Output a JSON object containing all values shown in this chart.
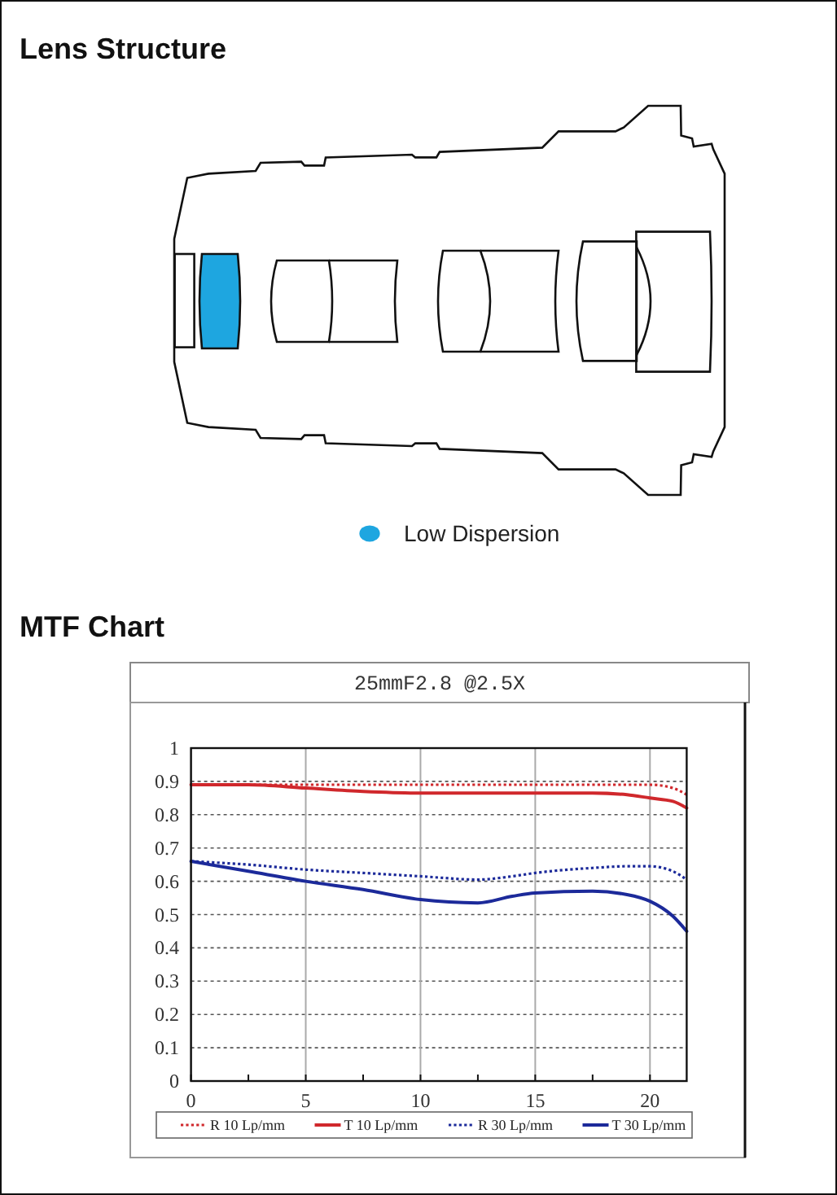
{
  "chart_data": [
    {
      "type": "other",
      "title": "Lens Structure",
      "annotations": [
        "Low Dispersion"
      ]
    },
    {
      "type": "line",
      "title": "MTF Chart",
      "subtitle": "25mmF2.8 @2.5X",
      "x": [
        0,
        2.5,
        5,
        7.5,
        10,
        12.5,
        14,
        15,
        17.5,
        19,
        20,
        21,
        21.6
      ],
      "series": [
        {
          "name": "R 10 Lp/mm",
          "color": "#d0282c",
          "line_style": "dotted",
          "values": [
            0.89,
            0.89,
            0.89,
            0.89,
            0.89,
            0.89,
            0.89,
            0.89,
            0.89,
            0.89,
            0.89,
            0.88,
            0.86
          ]
        },
        {
          "name": "T 10 Lp/mm",
          "color": "#d0282c",
          "line_style": "solid",
          "values": [
            0.89,
            0.89,
            0.88,
            0.87,
            0.865,
            0.865,
            0.865,
            0.865,
            0.865,
            0.86,
            0.85,
            0.84,
            0.82
          ]
        },
        {
          "name": "R 30 Lp/mm",
          "color": "#1c2a9a",
          "line_style": "dotted",
          "values": [
            0.66,
            0.65,
            0.635,
            0.625,
            0.615,
            0.605,
            0.615,
            0.625,
            0.64,
            0.645,
            0.645,
            0.63,
            0.605
          ]
        },
        {
          "name": "T 30 Lp/mm",
          "color": "#1c2a9a",
          "line_style": "solid",
          "values": [
            0.66,
            0.63,
            0.6,
            0.575,
            0.545,
            0.535,
            0.555,
            0.565,
            0.57,
            0.56,
            0.54,
            0.495,
            0.45
          ]
        }
      ],
      "xlim": [
        0,
        21.6
      ],
      "xticks": [
        0,
        {
          "value": 2.5,
          "label": null
        },
        5,
        {
          "value": 7.5,
          "label": null
        },
        10,
        {
          "value": 12.5,
          "label": null
        },
        15,
        {
          "value": 17.5,
          "label": null
        },
        20
      ],
      "ylim": [
        0,
        1
      ],
      "yticks": [
        0,
        0.1,
        0.2,
        0.3,
        0.4,
        0.5,
        0.6,
        0.7,
        0.8,
        0.9,
        1
      ],
      "grid": true,
      "legend": "bottom"
    }
  ]
}
